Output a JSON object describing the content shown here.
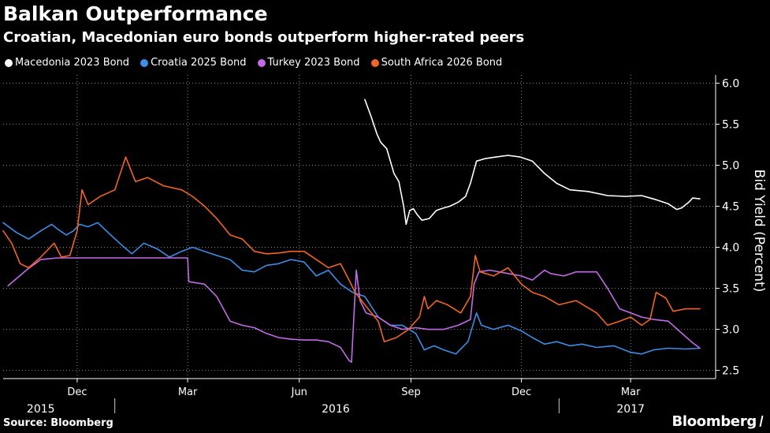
{
  "header": {
    "title": "Balkan Outperformance",
    "subtitle": "Croatian, Macedonian euro bonds outperform higher-rated peers"
  },
  "footer": {
    "source": "Source: Bloomberg",
    "brand": "Bloomberg"
  },
  "chart_data": {
    "type": "line",
    "title": "Balkan Outperformance",
    "subtitle": "Croatian, Macedonian euro bonds outperform higher-rated peers",
    "ylabel": "Bid Yield (Percent)",
    "xlim": [
      "2015-10-01",
      "2017-05-10"
    ],
    "ylim": [
      2.4,
      6.1
    ],
    "yticks": [
      2.5,
      3.0,
      3.5,
      4.0,
      4.5,
      5.0,
      5.5,
      6.0
    ],
    "ytick_labels": [
      "2.5",
      "3.0",
      "3.5",
      "4.0",
      "4.5",
      "5.0",
      "5.5",
      "6.0"
    ],
    "xticks": [
      {
        "date": "2015-12-01",
        "label": "Dec"
      },
      {
        "date": "2016-03-01",
        "label": "Mar"
      },
      {
        "date": "2016-06-01",
        "label": "Jun"
      },
      {
        "date": "2016-09-01",
        "label": "Sep"
      },
      {
        "date": "2016-12-01",
        "label": "Dec"
      },
      {
        "date": "2017-03-01",
        "label": "Mar"
      }
    ],
    "year_labels": [
      {
        "date": "2015-11-01",
        "label": "2015"
      },
      {
        "date": "2016-07-01",
        "label": "2016"
      },
      {
        "date": "2017-03-01",
        "label": "2017"
      }
    ],
    "year_dividers": [
      "2016-01-01",
      "2017-01-01"
    ],
    "grid": true,
    "legend_position": "top-left",
    "series": [
      {
        "name": "Macedonia 2023 Bond",
        "color": "#ffffff",
        "points": [
          [
            "2016-07-25",
            5.8
          ],
          [
            "2016-07-30",
            5.6
          ],
          [
            "2016-08-04",
            5.38
          ],
          [
            "2016-08-07",
            5.28
          ],
          [
            "2016-08-12",
            5.2
          ],
          [
            "2016-08-18",
            4.9
          ],
          [
            "2016-08-22",
            4.8
          ],
          [
            "2016-08-26",
            4.5
          ],
          [
            "2016-08-28",
            4.28
          ],
          [
            "2016-08-31",
            4.45
          ],
          [
            "2016-09-03",
            4.47
          ],
          [
            "2016-09-06",
            4.4
          ],
          [
            "2016-09-10",
            4.33
          ],
          [
            "2016-09-16",
            4.35
          ],
          [
            "2016-09-22",
            4.45
          ],
          [
            "2016-09-28",
            4.48
          ],
          [
            "2016-10-03",
            4.5
          ],
          [
            "2016-10-10",
            4.55
          ],
          [
            "2016-10-16",
            4.62
          ],
          [
            "2016-10-20",
            4.78
          ],
          [
            "2016-10-25",
            5.05
          ],
          [
            "2016-11-01",
            5.08
          ],
          [
            "2016-11-10",
            5.1
          ],
          [
            "2016-11-20",
            5.12
          ],
          [
            "2016-11-30",
            5.1
          ],
          [
            "2016-12-10",
            5.05
          ],
          [
            "2016-12-20",
            4.9
          ],
          [
            "2016-12-30",
            4.78
          ],
          [
            "2017-01-10",
            4.7
          ],
          [
            "2017-01-25",
            4.68
          ],
          [
            "2017-02-10",
            4.63
          ],
          [
            "2017-02-25",
            4.62
          ],
          [
            "2017-03-10",
            4.63
          ],
          [
            "2017-03-22",
            4.58
          ],
          [
            "2017-04-01",
            4.53
          ],
          [
            "2017-04-08",
            4.46
          ],
          [
            "2017-04-12",
            4.48
          ],
          [
            "2017-04-18",
            4.55
          ],
          [
            "2017-04-21",
            4.6
          ],
          [
            "2017-04-27",
            4.59
          ]
        ]
      },
      {
        "name": "Croatia 2025 Bond",
        "color": "#3d8de8",
        "points": [
          [
            "2015-10-01",
            4.3
          ],
          [
            "2015-10-12",
            4.18
          ],
          [
            "2015-10-22",
            4.1
          ],
          [
            "2015-11-01",
            4.2
          ],
          [
            "2015-11-10",
            4.28
          ],
          [
            "2015-11-15",
            4.22
          ],
          [
            "2015-11-22",
            4.15
          ],
          [
            "2015-11-28",
            4.2
          ],
          [
            "2015-12-03",
            4.28
          ],
          [
            "2015-12-10",
            4.25
          ],
          [
            "2015-12-18",
            4.3
          ],
          [
            "2015-12-25",
            4.2
          ],
          [
            "2016-01-05",
            4.05
          ],
          [
            "2016-01-15",
            3.92
          ],
          [
            "2016-01-25",
            4.05
          ],
          [
            "2016-02-05",
            3.98
          ],
          [
            "2016-02-15",
            3.88
          ],
          [
            "2016-02-25",
            3.95
          ],
          [
            "2016-03-05",
            4.0
          ],
          [
            "2016-03-15",
            3.95
          ],
          [
            "2016-03-25",
            3.9
          ],
          [
            "2016-04-05",
            3.85
          ],
          [
            "2016-04-15",
            3.72
          ],
          [
            "2016-04-25",
            3.7
          ],
          [
            "2016-05-05",
            3.78
          ],
          [
            "2016-05-15",
            3.8
          ],
          [
            "2016-05-25",
            3.85
          ],
          [
            "2016-06-05",
            3.82
          ],
          [
            "2016-06-15",
            3.65
          ],
          [
            "2016-06-25",
            3.72
          ],
          [
            "2016-07-05",
            3.55
          ],
          [
            "2016-07-15",
            3.45
          ],
          [
            "2016-07-25",
            3.4
          ],
          [
            "2016-08-05",
            3.15
          ],
          [
            "2016-08-15",
            3.05
          ],
          [
            "2016-08-25",
            3.05
          ],
          [
            "2016-09-05",
            2.95
          ],
          [
            "2016-09-12",
            2.75
          ],
          [
            "2016-09-20",
            2.8
          ],
          [
            "2016-09-28",
            2.75
          ],
          [
            "2016-10-08",
            2.7
          ],
          [
            "2016-10-18",
            2.85
          ],
          [
            "2016-10-25",
            3.2
          ],
          [
            "2016-10-29",
            3.05
          ],
          [
            "2016-11-08",
            3.0
          ],
          [
            "2016-11-20",
            3.05
          ],
          [
            "2016-12-01",
            2.98
          ],
          [
            "2016-12-10",
            2.9
          ],
          [
            "2016-12-20",
            2.82
          ],
          [
            "2016-12-30",
            2.85
          ],
          [
            "2017-01-10",
            2.8
          ],
          [
            "2017-01-20",
            2.82
          ],
          [
            "2017-02-01",
            2.78
          ],
          [
            "2017-02-15",
            2.8
          ],
          [
            "2017-03-01",
            2.72
          ],
          [
            "2017-03-10",
            2.7
          ],
          [
            "2017-03-20",
            2.75
          ],
          [
            "2017-04-01",
            2.77
          ],
          [
            "2017-04-15",
            2.76
          ],
          [
            "2017-04-27",
            2.77
          ]
        ]
      },
      {
        "name": "Turkey 2023 Bond",
        "color": "#c46ae8",
        "points": [
          [
            "2015-10-05",
            3.53
          ],
          [
            "2015-10-20",
            3.72
          ],
          [
            "2015-11-01",
            3.85
          ],
          [
            "2015-11-15",
            3.87
          ],
          [
            "2015-12-01",
            3.87
          ],
          [
            "2016-01-15",
            3.87
          ],
          [
            "2016-02-15",
            3.87
          ],
          [
            "2016-03-01",
            3.87
          ],
          [
            "2016-03-02",
            3.58
          ],
          [
            "2016-03-15",
            3.55
          ],
          [
            "2016-03-25",
            3.4
          ],
          [
            "2016-04-05",
            3.1
          ],
          [
            "2016-04-15",
            3.05
          ],
          [
            "2016-04-25",
            3.02
          ],
          [
            "2016-05-05",
            2.95
          ],
          [
            "2016-05-15",
            2.9
          ],
          [
            "2016-05-25",
            2.88
          ],
          [
            "2016-06-05",
            2.87
          ],
          [
            "2016-06-15",
            2.87
          ],
          [
            "2016-06-25",
            2.85
          ],
          [
            "2016-07-05",
            2.78
          ],
          [
            "2016-07-12",
            2.62
          ],
          [
            "2016-07-14",
            2.6
          ],
          [
            "2016-07-18",
            3.72
          ],
          [
            "2016-07-21",
            3.35
          ],
          [
            "2016-07-26",
            3.2
          ],
          [
            "2016-08-05",
            3.15
          ],
          [
            "2016-08-15",
            3.05
          ],
          [
            "2016-08-25",
            3.0
          ],
          [
            "2016-09-05",
            3.02
          ],
          [
            "2016-09-15",
            3.0
          ],
          [
            "2016-09-28",
            3.0
          ],
          [
            "2016-10-10",
            3.05
          ],
          [
            "2016-10-20",
            3.12
          ],
          [
            "2016-10-23",
            3.55
          ],
          [
            "2016-10-27",
            3.7
          ],
          [
            "2016-11-05",
            3.72
          ],
          [
            "2016-11-20",
            3.68
          ],
          [
            "2016-12-01",
            3.65
          ],
          [
            "2016-12-10",
            3.6
          ],
          [
            "2016-12-20",
            3.72
          ],
          [
            "2016-12-25",
            3.68
          ],
          [
            "2017-01-05",
            3.65
          ],
          [
            "2017-01-15",
            3.7
          ],
          [
            "2017-02-01",
            3.7
          ],
          [
            "2017-02-10",
            3.5
          ],
          [
            "2017-02-20",
            3.25
          ],
          [
            "2017-03-01",
            3.2
          ],
          [
            "2017-03-10",
            3.15
          ],
          [
            "2017-03-20",
            3.12
          ],
          [
            "2017-04-01",
            3.1
          ],
          [
            "2017-04-10",
            2.98
          ],
          [
            "2017-04-20",
            2.85
          ],
          [
            "2017-04-27",
            2.77
          ]
        ]
      },
      {
        "name": "South Africa 2026 Bond",
        "color": "#f26522",
        "points": [
          [
            "2015-10-01",
            4.2
          ],
          [
            "2015-10-08",
            4.05
          ],
          [
            "2015-10-15",
            3.8
          ],
          [
            "2015-10-22",
            3.75
          ],
          [
            "2015-11-01",
            3.88
          ],
          [
            "2015-11-12",
            4.05
          ],
          [
            "2015-11-18",
            3.88
          ],
          [
            "2015-11-25",
            3.9
          ],
          [
            "2015-12-01",
            4.2
          ],
          [
            "2015-12-05",
            4.7
          ],
          [
            "2015-12-10",
            4.52
          ],
          [
            "2015-12-20",
            4.62
          ],
          [
            "2016-01-01",
            4.7
          ],
          [
            "2016-01-10",
            5.1
          ],
          [
            "2016-01-18",
            4.8
          ],
          [
            "2016-01-28",
            4.85
          ],
          [
            "2016-02-10",
            4.75
          ],
          [
            "2016-02-25",
            4.7
          ],
          [
            "2016-03-05",
            4.62
          ],
          [
            "2016-03-15",
            4.5
          ],
          [
            "2016-03-25",
            4.35
          ],
          [
            "2016-04-05",
            4.15
          ],
          [
            "2016-04-15",
            4.1
          ],
          [
            "2016-04-25",
            3.95
          ],
          [
            "2016-05-05",
            3.92
          ],
          [
            "2016-05-15",
            3.93
          ],
          [
            "2016-05-25",
            3.95
          ],
          [
            "2016-06-05",
            3.95
          ],
          [
            "2016-06-15",
            3.85
          ],
          [
            "2016-06-25",
            3.75
          ],
          [
            "2016-07-05",
            3.8
          ],
          [
            "2016-07-12",
            3.6
          ],
          [
            "2016-07-17",
            3.45
          ],
          [
            "2016-07-25",
            3.3
          ],
          [
            "2016-08-05",
            3.1
          ],
          [
            "2016-08-10",
            2.85
          ],
          [
            "2016-08-20",
            2.9
          ],
          [
            "2016-08-30",
            3.0
          ],
          [
            "2016-09-08",
            3.15
          ],
          [
            "2016-09-12",
            3.4
          ],
          [
            "2016-09-15",
            3.25
          ],
          [
            "2016-09-22",
            3.35
          ],
          [
            "2016-10-01",
            3.3
          ],
          [
            "2016-10-12",
            3.2
          ],
          [
            "2016-10-20",
            3.4
          ],
          [
            "2016-10-24",
            3.9
          ],
          [
            "2016-10-28",
            3.7
          ],
          [
            "2016-11-08",
            3.65
          ],
          [
            "2016-11-20",
            3.75
          ],
          [
            "2016-12-01",
            3.55
          ],
          [
            "2016-12-10",
            3.45
          ],
          [
            "2016-12-20",
            3.4
          ],
          [
            "2017-01-01",
            3.3
          ],
          [
            "2017-01-15",
            3.35
          ],
          [
            "2017-02-01",
            3.2
          ],
          [
            "2017-02-10",
            3.05
          ],
          [
            "2017-02-20",
            3.1
          ],
          [
            "2017-03-01",
            3.15
          ],
          [
            "2017-03-10",
            3.05
          ],
          [
            "2017-03-17",
            3.12
          ],
          [
            "2017-03-22",
            3.45
          ],
          [
            "2017-03-30",
            3.38
          ],
          [
            "2017-04-05",
            3.22
          ],
          [
            "2017-04-15",
            3.25
          ],
          [
            "2017-04-27",
            3.25
          ]
        ]
      }
    ]
  }
}
